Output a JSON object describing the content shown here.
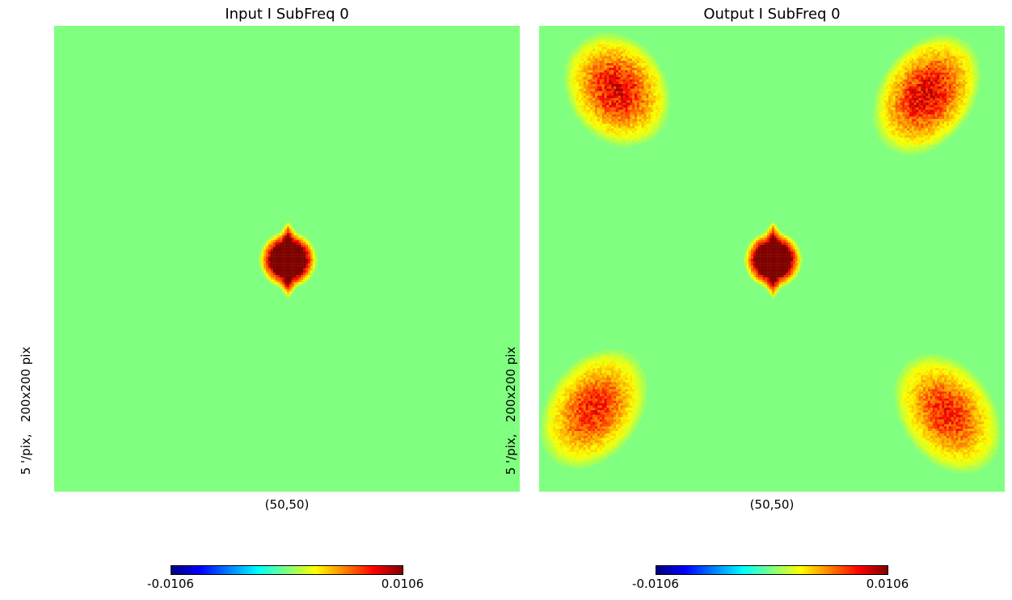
{
  "chart_data": [
    {
      "type": "heatmap",
      "title": "Input I SubFreq 0",
      "ylabel": "5 '/pix,   200x200 pix",
      "xlabel": "(50,50)",
      "colormap": "jet",
      "colorbar": {
        "min_label": "-0.0106",
        "max_label": "0.0106",
        "min": -0.0106,
        "max": 0.0106
      },
      "background_value": 0.0,
      "blobs": [
        {
          "cx": 100,
          "cy": 100,
          "rx": 9,
          "ry": 10,
          "value": 0.0106,
          "noise": 0.0,
          "kind": "core"
        }
      ]
    },
    {
      "type": "heatmap",
      "title": "Output I SubFreq 0",
      "ylabel": "5 '/pix,   200x200 pix",
      "xlabel": "(50,50)",
      "colormap": "jet",
      "colorbar": {
        "min_label": "-0.0106",
        "max_label": "0.0106",
        "min": -0.0106,
        "max": 0.0106
      },
      "background_value": 0.0,
      "blobs": [
        {
          "cx": 100,
          "cy": 100,
          "rx": 9,
          "ry": 10,
          "value": 0.0106,
          "noise": 0.0,
          "kind": "core"
        },
        {
          "cx": 33,
          "cy": 27,
          "rx": 18,
          "ry": 22,
          "value": 0.0075,
          "noise": 0.0025,
          "kind": "diffuse",
          "angle": -35
        },
        {
          "cx": 166,
          "cy": 29,
          "rx": 17,
          "ry": 24,
          "value": 0.0078,
          "noise": 0.0025,
          "kind": "diffuse",
          "angle": 35
        },
        {
          "cx": 23,
          "cy": 164,
          "rx": 17,
          "ry": 24,
          "value": 0.0068,
          "noise": 0.002,
          "kind": "diffuse",
          "angle": 35
        },
        {
          "cx": 175,
          "cy": 166,
          "rx": 17,
          "ry": 24,
          "value": 0.0068,
          "noise": 0.002,
          "kind": "diffuse",
          "angle": -35
        }
      ]
    }
  ]
}
